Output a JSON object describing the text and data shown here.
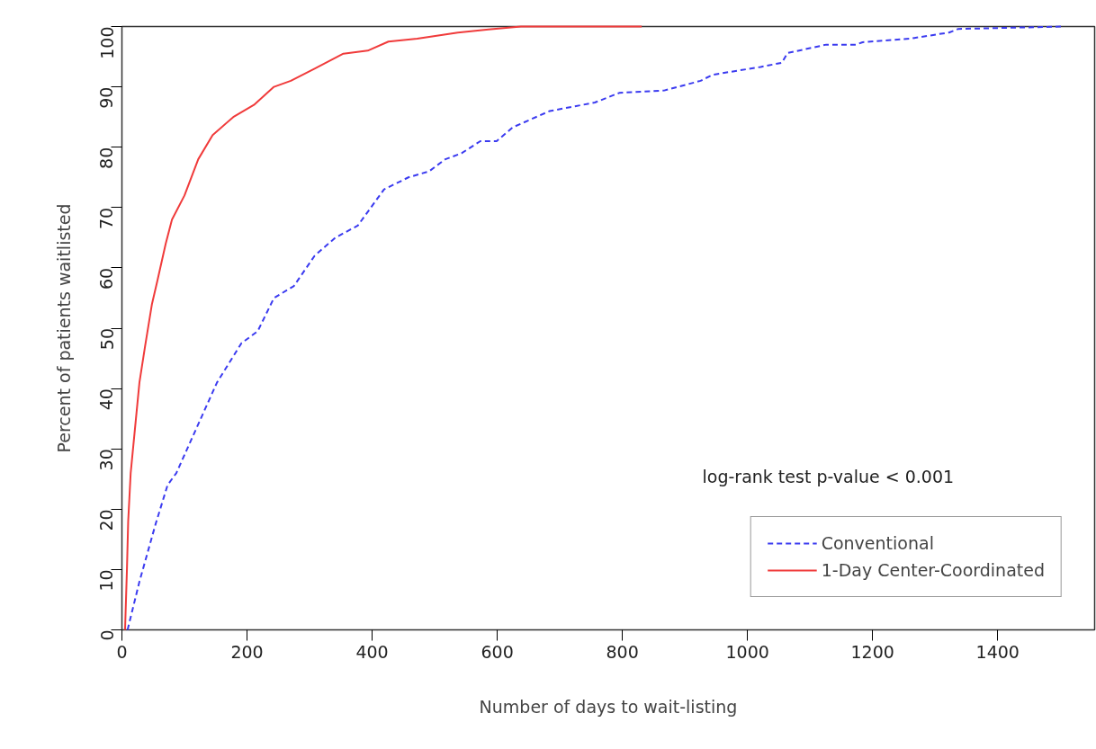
{
  "chart_data": {
    "type": "line",
    "xlabel": "Number of days to wait-listing",
    "ylabel": "Percent of patients waitlisted",
    "xlim": [
      0,
      1555
    ],
    "ylim": [
      0,
      100
    ],
    "xticks": [
      0,
      200,
      400,
      600,
      800,
      1000,
      1200,
      1400
    ],
    "yticks": [
      0,
      10,
      20,
      30,
      40,
      50,
      60,
      70,
      80,
      90,
      100
    ],
    "grid": false,
    "legend": "bottom right",
    "annotations": [
      "log-rank test p-value < 0.001"
    ],
    "series": [
      {
        "name": "Conventional",
        "color": "#3b3bf0",
        "line_style": "dashed",
        "x": [
          9,
          28,
          54,
          73,
          87,
          113,
          152,
          191,
          217,
          243,
          275,
          308,
          341,
          377,
          419,
          458,
          491,
          517,
          543,
          573,
          599,
          625,
          684,
          756,
          795,
          867,
          925,
          944,
          1021,
          1055,
          1064,
          1126,
          1174,
          1184,
          1260,
          1322,
          1337,
          1504
        ],
        "values": [
          0,
          8,
          17.6,
          24,
          26,
          32,
          41,
          47.5,
          49.5,
          55,
          57,
          62,
          65,
          67,
          73,
          75,
          76,
          78,
          79,
          81,
          81,
          83.3,
          86,
          87.4,
          89,
          89.4,
          91,
          92,
          93.3,
          94,
          95.6,
          97,
          97,
          97.4,
          98,
          99,
          99.6,
          100
        ]
      },
      {
        "name": "1-Day Center-Coordinated",
        "color": "#f03b3b",
        "line_style": "solid",
        "x": [
          5,
          8,
          10,
          14,
          28,
          37,
          48,
          57,
          70,
          80,
          100,
          122,
          145,
          178,
          211,
          243,
          270,
          308,
          354,
          393,
          426,
          472,
          537,
          586,
          638,
          831
        ],
        "values": [
          0,
          10,
          18,
          26,
          41,
          47,
          54,
          58,
          64,
          68,
          72,
          78,
          82,
          85,
          87,
          90,
          91,
          93,
          95.5,
          96,
          97.5,
          98,
          99,
          99.5,
          100,
          100
        ]
      }
    ]
  }
}
